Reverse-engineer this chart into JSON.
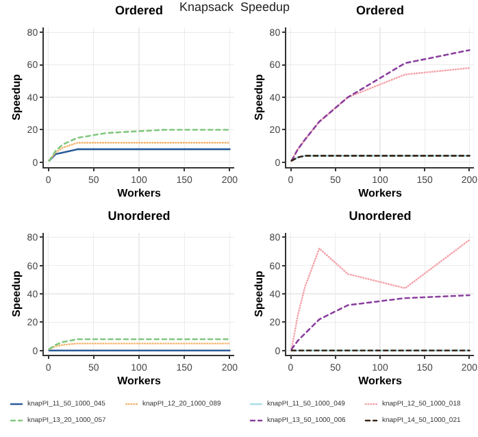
{
  "chart_data": [
    {
      "type": "line",
      "title": "Ordered",
      "xlabel": "Workers",
      "ylabel": "Speedup",
      "annotations": [
        "Knapsack  Speedup"
      ],
      "xlim": [
        -5,
        205
      ],
      "xticks": [
        0,
        50,
        100,
        150,
        200
      ],
      "ylim": [
        -3,
        83
      ],
      "yticks": [
        0,
        20,
        40,
        60,
        80
      ],
      "grid": true,
      "legend": false,
      "marker": "none",
      "x": [
        1,
        8,
        16,
        32,
        64,
        128,
        200
      ],
      "series": [
        {
          "color": "#2b5c9a",
          "line_style": "solid",
          "values": [
            1,
            5,
            6,
            8,
            8,
            8,
            8
          ]
        },
        {
          "color": "#f5b56e",
          "line_style": "dotted",
          "values": [
            1,
            6,
            9,
            12,
            12,
            12,
            12
          ]
        },
        {
          "color": "#82c77f",
          "line_style": "dashed",
          "values": [
            1,
            7,
            11,
            15,
            18,
            20,
            20
          ]
        }
      ]
    },
    {
      "type": "line",
      "title": "Ordered",
      "xlabel": "Workers",
      "ylabel": "Speedup",
      "xlim": [
        -5,
        205
      ],
      "xticks": [
        0,
        50,
        100,
        150,
        200
      ],
      "ylim": [
        -3,
        83
      ],
      "yticks": [
        0,
        20,
        40,
        60,
        80
      ],
      "grid": true,
      "legend": false,
      "marker": "none",
      "x": [
        1,
        8,
        16,
        32,
        64,
        128,
        200
      ],
      "series": [
        {
          "color": "#a8dde6",
          "line_style": "solid",
          "values": [
            1,
            3,
            4,
            4,
            4,
            4,
            4
          ]
        },
        {
          "color": "#f4a3aa",
          "line_style": "dotted",
          "values": [
            1,
            8,
            14,
            25,
            40,
            54,
            58
          ]
        },
        {
          "color": "#8a3f9e",
          "line_style": "dashed",
          "values": [
            1,
            8,
            14,
            25,
            40,
            61,
            69
          ]
        },
        {
          "color": "#3a2616",
          "line_style": "dashed",
          "values": [
            1,
            3,
            4,
            4,
            4,
            4,
            4
          ]
        }
      ]
    },
    {
      "type": "line",
      "title": "Unordered",
      "xlabel": "Workers",
      "ylabel": "Speedup",
      "xlim": [
        -5,
        205
      ],
      "xticks": [
        0,
        50,
        100,
        150,
        200
      ],
      "ylim": [
        -3,
        83
      ],
      "yticks": [
        0,
        20,
        40,
        60,
        80
      ],
      "grid": true,
      "legend": "bottom",
      "marker": "none",
      "x": [
        1,
        8,
        16,
        32,
        64,
        128,
        200
      ],
      "series": [
        {
          "name": "knapPI_11_50_1000_045",
          "color": "#2b5c9a",
          "line_style": "solid",
          "values": [
            0,
            0,
            0,
            0,
            0,
            0,
            0
          ]
        },
        {
          "name": "knapPI_12_20_1000_089",
          "color": "#f5b56e",
          "line_style": "dotted",
          "values": [
            1,
            3,
            4,
            5,
            5,
            5,
            5
          ]
        },
        {
          "name": "knapPI_13_20_1000_057",
          "color": "#82c77f",
          "line_style": "dashed",
          "values": [
            1,
            4,
            6,
            8,
            8,
            8,
            8
          ]
        }
      ]
    },
    {
      "type": "line",
      "title": "Unordered",
      "xlabel": "Workers",
      "ylabel": "Speedup",
      "xlim": [
        -5,
        205
      ],
      "xticks": [
        0,
        50,
        100,
        150,
        200
      ],
      "ylim": [
        -3,
        83
      ],
      "yticks": [
        0,
        20,
        40,
        60,
        80
      ],
      "grid": true,
      "legend": "bottom",
      "marker": "none",
      "x": [
        1,
        8,
        16,
        32,
        64,
        128,
        200
      ],
      "series": [
        {
          "name": "knapPI_11_50_1000_049",
          "color": "#a8dde6",
          "line_style": "solid",
          "values": [
            0,
            0,
            0,
            0,
            0,
            0,
            0
          ]
        },
        {
          "name": "knapPI_12_50_1000_018",
          "color": "#f4a3aa",
          "line_style": "dotted",
          "values": [
            1,
            25,
            45,
            72,
            54,
            44,
            78
          ]
        },
        {
          "name": "knapPI_13_50_1000_006",
          "color": "#8a3f9e",
          "line_style": "dashed",
          "values": [
            1,
            7,
            12,
            22,
            32,
            37,
            39
          ]
        },
        {
          "name": "knapPI_14_50_1000_021",
          "color": "#3a2616",
          "line_style": "dashed",
          "values": [
            0,
            0,
            0,
            0,
            0,
            0,
            0
          ]
        }
      ]
    }
  ]
}
